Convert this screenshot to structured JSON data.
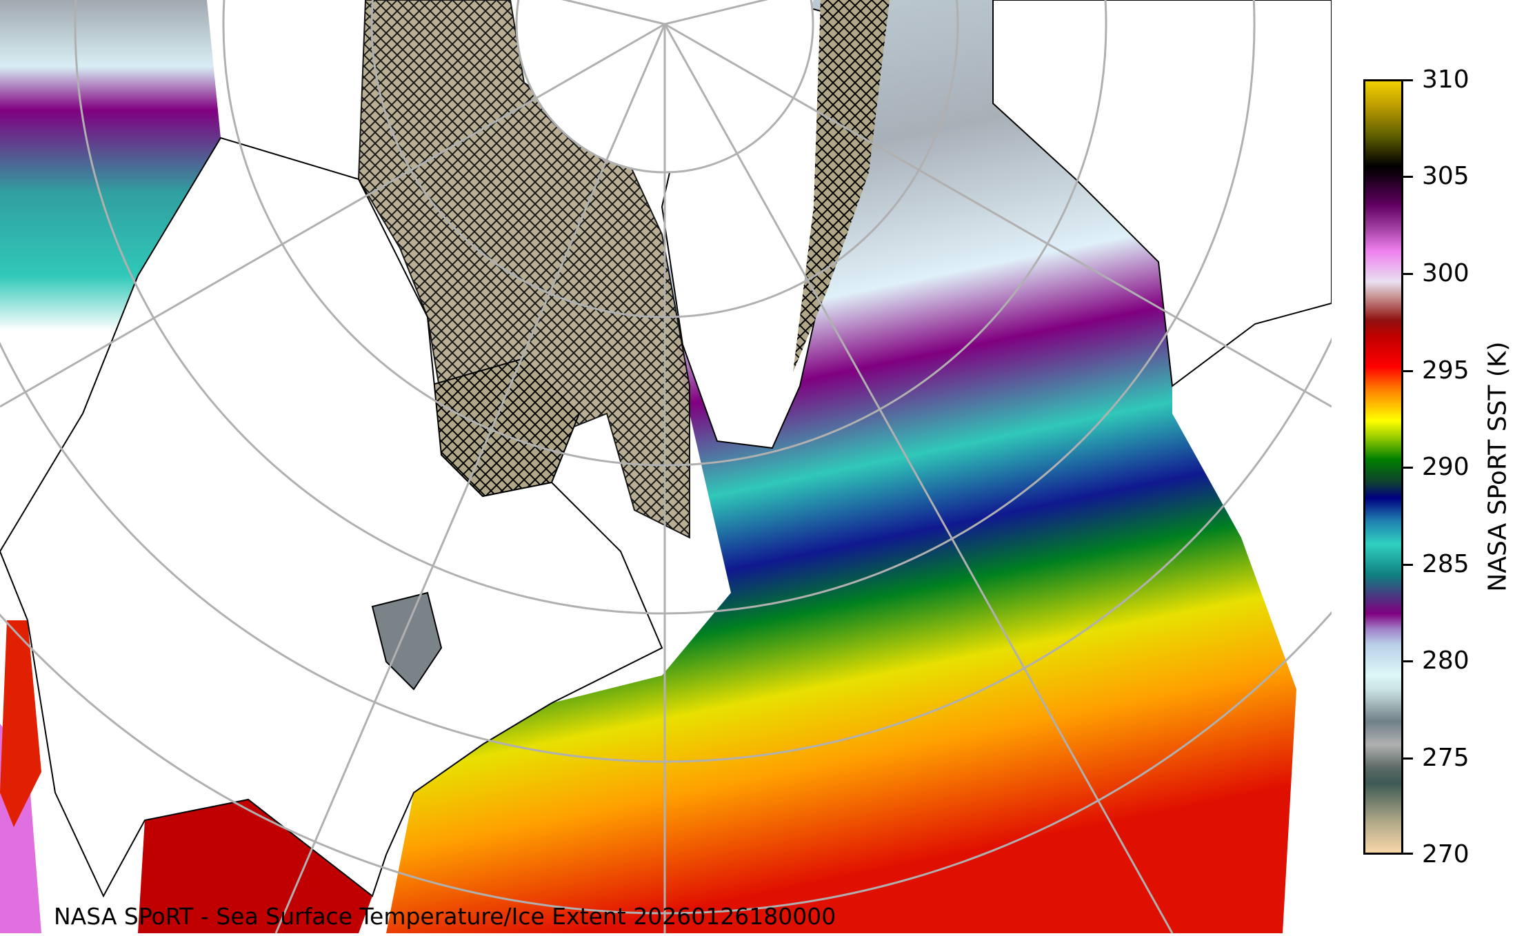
{
  "map": {
    "title": "NASA SPoRT - Sea Surface Temperature/Ice Extent 20260126180000",
    "projection": "north-polar-stereographic",
    "region": "North America / North Atlantic",
    "colors": {
      "land": "#ffffff",
      "ice": "#b0a688",
      "graticule": "#b0b0b0",
      "coast": "#000000"
    }
  },
  "colorbar": {
    "label": "NASA SPoRT SST (K)",
    "min": 270,
    "max": 310,
    "ticks": [
      "310",
      "305",
      "300",
      "295",
      "290",
      "285",
      "280",
      "275",
      "270"
    ]
  }
}
